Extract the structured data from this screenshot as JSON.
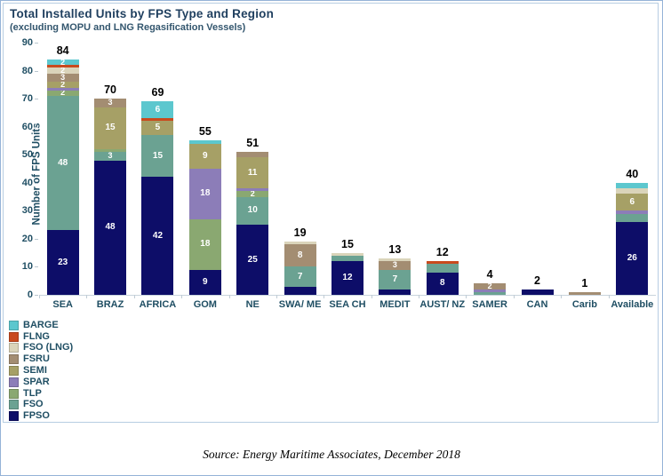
{
  "chart_data": {
    "type": "bar",
    "variant": "stacked",
    "title": "Total Installed Units by FPS Type and Region",
    "subtitle": "(excluding MOPU and LNG Regasification Vessels)",
    "ylabel": "Number of FPS Units",
    "ylim": [
      0,
      90
    ],
    "yticks": [
      0,
      10,
      20,
      30,
      40,
      50,
      60,
      70,
      80,
      90
    ],
    "grid": false,
    "legend_position": "bottom-left",
    "stack_order_bottom_to_top": [
      "FPSO",
      "FSO",
      "TLP",
      "SPAR",
      "SEMI",
      "FSRU",
      "FSO (LNG)",
      "FLNG",
      "BARGE"
    ],
    "colors": {
      "FPSO": "#0d0d68",
      "FSO": "#6ba292",
      "TLP": "#8aa871",
      "SPAR": "#8c7db8",
      "SEMI": "#a6a066",
      "FSRU": "#a38d72",
      "FSO (LNG)": "#dad4ba",
      "FLNG": "#c94a1e",
      "BARGE": "#5cc7ce"
    },
    "categories": [
      "SEA",
      "BRAZ",
      "AFRICA",
      "GOM",
      "NE",
      "SWA/ ME",
      "SEA CH",
      "MEDIT",
      "AUST/ NZ",
      "SAMER",
      "CAN",
      "Carib",
      "Available"
    ],
    "totals": [
      84,
      70,
      69,
      55,
      51,
      19,
      15,
      13,
      12,
      4,
      2,
      1,
      40
    ],
    "bars": [
      {
        "category": "SEA",
        "total": "84",
        "segments": [
          {
            "type": "FPSO",
            "value": 23,
            "label": "23"
          },
          {
            "type": "FSO",
            "value": 48,
            "label": "48"
          },
          {
            "type": "TLP",
            "value": 2,
            "label": "2"
          },
          {
            "type": "SPAR",
            "value": 1,
            "label": ""
          },
          {
            "type": "SEMI",
            "value": 2,
            "label": "2"
          },
          {
            "type": "FSRU",
            "value": 3,
            "label": "3"
          },
          {
            "type": "FSO (LNG)",
            "value": 2,
            "label": "2"
          },
          {
            "type": "FLNG",
            "value": 1,
            "label": ""
          },
          {
            "type": "BARGE",
            "value": 2,
            "label": "2"
          }
        ]
      },
      {
        "category": "BRAZ",
        "total": "70",
        "segments": [
          {
            "type": "FPSO",
            "value": 48,
            "label": "48"
          },
          {
            "type": "FSO",
            "value": 3,
            "label": "3"
          },
          {
            "type": "TLP",
            "value": 1,
            "label": ""
          },
          {
            "type": "SEMI",
            "value": 15,
            "label": "15"
          },
          {
            "type": "FSRU",
            "value": 3,
            "label": "3"
          }
        ]
      },
      {
        "category": "AFRICA",
        "total": "69",
        "segments": [
          {
            "type": "FPSO",
            "value": 42,
            "label": "42"
          },
          {
            "type": "FSO",
            "value": 15,
            "label": "15"
          },
          {
            "type": "SEMI",
            "value": 5,
            "label": "5"
          },
          {
            "type": "FLNG",
            "value": 1,
            "label": ""
          },
          {
            "type": "BARGE",
            "value": 6,
            "label": "6"
          }
        ]
      },
      {
        "category": "GOM",
        "total": "55",
        "segments": [
          {
            "type": "FPSO",
            "value": 9,
            "label": "9"
          },
          {
            "type": "TLP",
            "value": 18,
            "label": "18"
          },
          {
            "type": "SPAR",
            "value": 18,
            "label": "18"
          },
          {
            "type": "SEMI",
            "value": 9,
            "label": "9"
          },
          {
            "type": "BARGE",
            "value": 1,
            "label": ""
          }
        ]
      },
      {
        "category": "NE",
        "total": "51",
        "segments": [
          {
            "type": "FPSO",
            "value": 25,
            "label": "25"
          },
          {
            "type": "FSO",
            "value": 10,
            "label": "10"
          },
          {
            "type": "TLP",
            "value": 2,
            "label": "2"
          },
          {
            "type": "SPAR",
            "value": 1,
            "label": ""
          },
          {
            "type": "SEMI",
            "value": 11,
            "label": "11"
          },
          {
            "type": "FSRU",
            "value": 2,
            "label": ""
          }
        ]
      },
      {
        "category": "SWA/ ME",
        "total": "19",
        "segments": [
          {
            "type": "FPSO",
            "value": 3,
            "label": ""
          },
          {
            "type": "FSO",
            "value": 7,
            "label": "7"
          },
          {
            "type": "FSRU",
            "value": 8,
            "label": "8"
          },
          {
            "type": "FSO (LNG)",
            "value": 1,
            "label": ""
          }
        ]
      },
      {
        "category": "SEA CH",
        "total": "15",
        "segments": [
          {
            "type": "FPSO",
            "value": 12,
            "label": "12"
          },
          {
            "type": "FSO",
            "value": 2,
            "label": ""
          },
          {
            "type": "FSO (LNG)",
            "value": 1,
            "label": ""
          }
        ]
      },
      {
        "category": "MEDIT",
        "total": "13",
        "segments": [
          {
            "type": "FPSO",
            "value": 2,
            "label": ""
          },
          {
            "type": "FSO",
            "value": 7,
            "label": "7"
          },
          {
            "type": "FSRU",
            "value": 3,
            "label": "3"
          },
          {
            "type": "FSO (LNG)",
            "value": 1,
            "label": ""
          }
        ]
      },
      {
        "category": "AUST/ NZ",
        "total": "12",
        "segments": [
          {
            "type": "FPSO",
            "value": 8,
            "label": "8"
          },
          {
            "type": "FSO",
            "value": 3,
            "label": ""
          },
          {
            "type": "FLNG",
            "value": 1,
            "label": ""
          }
        ]
      },
      {
        "category": "SAMER",
        "total": "4",
        "segments": [
          {
            "type": "FSO",
            "value": 1,
            "label": ""
          },
          {
            "type": "SPAR",
            "value": 1,
            "label": ""
          },
          {
            "type": "FSRU",
            "value": 2,
            "label": "2"
          }
        ]
      },
      {
        "category": "CAN",
        "total": "2",
        "segments": [
          {
            "type": "FPSO",
            "value": 2,
            "label": ""
          }
        ]
      },
      {
        "category": "Carib",
        "total": "1",
        "segments": [
          {
            "type": "FSRU",
            "value": 1,
            "label": ""
          }
        ]
      },
      {
        "category": "Available",
        "total": "40",
        "segments": [
          {
            "type": "FPSO",
            "value": 26,
            "label": "26"
          },
          {
            "type": "FSO",
            "value": 3,
            "label": ""
          },
          {
            "type": "SPAR",
            "value": 1,
            "label": ""
          },
          {
            "type": "SEMI",
            "value": 6,
            "label": "6"
          },
          {
            "type": "FSO (LNG)",
            "value": 2,
            "label": ""
          },
          {
            "type": "BARGE",
            "value": 2,
            "label": ""
          }
        ]
      }
    ]
  },
  "legend": {
    "items_top_to_bottom": [
      {
        "label": "BARGE",
        "color": "#5cc7ce"
      },
      {
        "label": "FLNG",
        "color": "#c94a1e"
      },
      {
        "label": "FSO (LNG)",
        "color": "#dad4ba"
      },
      {
        "label": "FSRU",
        "color": "#a38d72"
      },
      {
        "label": "SEMI",
        "color": "#a6a066"
      },
      {
        "label": "SPAR",
        "color": "#8c7db8"
      },
      {
        "label": "TLP",
        "color": "#8aa871"
      },
      {
        "label": "FSO",
        "color": "#6ba292"
      },
      {
        "label": "FPSO",
        "color": "#0d0d68"
      }
    ]
  },
  "footer": {
    "source": "Source: Energy Maritime Associates, December 2018"
  }
}
